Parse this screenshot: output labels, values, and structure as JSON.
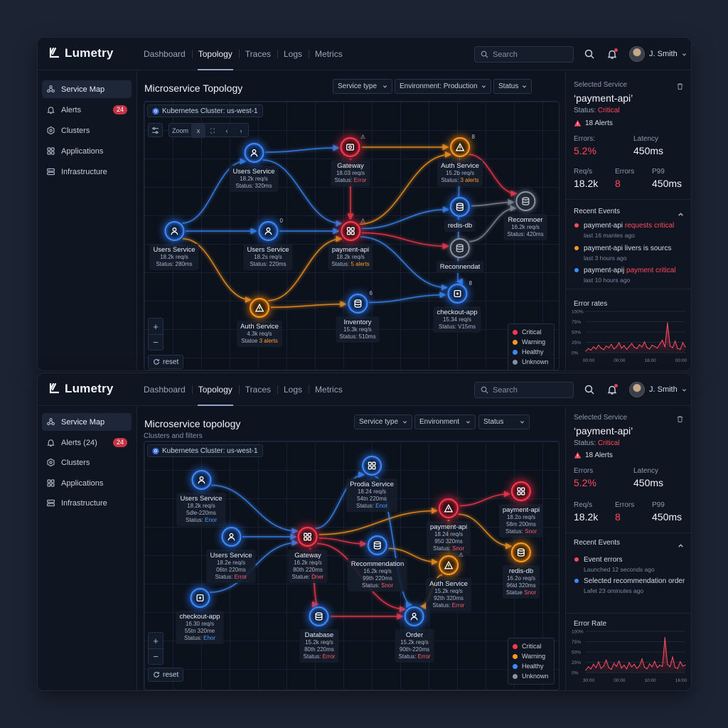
{
  "screens": [
    {
      "brand": "Lumetry",
      "nav": [
        "Dashboard",
        "Topology",
        "Traces",
        "Logs",
        "Metrics"
      ],
      "nav_active": 1,
      "search_placeholder": "Search",
      "user_name": "J. Smith",
      "sidebar": [
        {
          "label": "Service Map",
          "icon": "share-nodes-icon",
          "active": true
        },
        {
          "label": "Alerts",
          "icon": "bell-icon",
          "badge": "24"
        },
        {
          "label": "Clusters",
          "icon": "hexagon-icon"
        },
        {
          "label": "Applications",
          "icon": "grid-icon"
        },
        {
          "label": "Infrastructure",
          "icon": "server-icon"
        }
      ],
      "title": "Microservice Topology",
      "subtitle": "",
      "filters": [
        "Service type",
        "Environment: Production",
        "Status"
      ],
      "cluster": "Kubernetes Cluster: us-west-1",
      "toolbar": {
        "zoom_label": "Zoom",
        "buttons": [
          "x",
          "⛶",
          "‹",
          "›"
        ]
      },
      "reset_label": "reset",
      "nodes": [
        {
          "id": "u1",
          "title": "Users Service",
          "lines": [
            "18.2k req/s",
            "Status: 320ms"
          ],
          "status": "healthy",
          "icon": "user-icon"
        },
        {
          "id": "gw",
          "title": "Gateway",
          "lines": [
            "18.03 req/s",
            "Status: |Error"
          ],
          "status": "critical",
          "icon": "gateway-icon",
          "mark": "⚠"
        },
        {
          "id": "au",
          "title": "Auth Service",
          "lines": [
            "15.2b req/s",
            "Status: |3 alerts"
          ],
          "status": "warning",
          "icon": "alert-icon",
          "mark": "8"
        },
        {
          "id": "u0",
          "title": "Users Service",
          "lines": [
            "18.2k req/s",
            "Status: 280ms"
          ],
          "status": "healthy",
          "icon": "user-icon"
        },
        {
          "id": "u2",
          "title": "Users Service",
          "lines": [
            "18.2s req/s",
            "Status: 220ms"
          ],
          "status": "healthy",
          "icon": "user-icon",
          "mark": "0"
        },
        {
          "id": "pa",
          "title": "payment-api",
          "lines": [
            "18.2k req/s",
            "Status: |5 alerts"
          ],
          "status": "critical",
          "icon": "grid-icon",
          "mark": "⚠"
        },
        {
          "id": "rd",
          "title": "redis-db",
          "lines": [],
          "status": "healthy",
          "icon": "database-icon"
        },
        {
          "id": "rc",
          "title": "Recomnoer",
          "lines": [
            "16.2k req/s",
            "Status: 420ms"
          ],
          "status": "unknown",
          "icon": "database-icon"
        },
        {
          "id": "rn",
          "title": "Reconnendat",
          "lines": [],
          "status": "unknown",
          "icon": "database-icon"
        },
        {
          "id": "a2",
          "title": "Auth Service",
          "lines": [
            "4.3k req/s",
            "Statoe |3 alerts"
          ],
          "status": "warning",
          "icon": "alert-icon"
        },
        {
          "id": "iv",
          "title": "Inventory",
          "lines": [
            "15.3k req/s",
            "Status: 510ms"
          ],
          "status": "healthy",
          "icon": "database-icon",
          "mark": "6"
        },
        {
          "id": "co",
          "title": "checkout-app",
          "lines": [
            "15.34 req/s",
            "Status: V15ms"
          ],
          "status": "healthy",
          "icon": "box-icon",
          "mark": "8"
        }
      ],
      "legend": [
        "Critical",
        "Warning",
        "Healthy",
        "Unknown"
      ],
      "panel": {
        "label": "Selected Service",
        "service": "‘payment-api’",
        "status_label": "Status:",
        "status_value": "Critical",
        "alerts": "18 Alerts",
        "metrics": [
          {
            "label": "Errors:",
            "value": "5.2%",
            "red": true
          },
          {
            "label": "Latency",
            "value": "450ms"
          },
          {
            "label": "Req/s",
            "value": "18.2k"
          },
          {
            "label": "Errors",
            "value": "8",
            "red": true
          },
          {
            "label": "P99",
            "value": "450ms"
          }
        ],
        "events_title": "Recent Events",
        "events": [
          {
            "text": "payment-api ",
            "hl": "requests critical",
            "time": "last 16 mantes ago",
            "color": "#ff4a5c"
          },
          {
            "text": "payment-api livers is sourcs",
            "hl": "",
            "time": "last 3 hours ago",
            "color": "#ff9a2a"
          },
          {
            "text": "payment-apij ",
            "hl": "payment critical",
            "time": "last 10 hours ago",
            "color": "#3d8bff"
          }
        ],
        "chart_title": "Error rates"
      }
    },
    {
      "brand": "Lumetry",
      "nav": [
        "Dashboard",
        "Topology",
        "Traces",
        "Logs",
        "Metrics"
      ],
      "nav_active": 1,
      "search_placeholder": "Search",
      "user_name": "J. Smith",
      "sidebar": [
        {
          "label": "Service Map",
          "icon": "share-nodes-icon",
          "active": true
        },
        {
          "label": "Alerts (24)",
          "icon": "bell-icon",
          "badge": "24"
        },
        {
          "label": "Clusters",
          "icon": "hexagon-icon"
        },
        {
          "label": "Applications",
          "icon": "grid-icon"
        },
        {
          "label": "Infrastructure",
          "icon": "server-icon"
        }
      ],
      "title": "Microservice topology",
      "subtitle": "Clusters and filters",
      "filters": [
        "Service type",
        "Environment",
        "Status"
      ],
      "cluster": "Kubernetes Cluster: us-west-1",
      "reset_label": "reset",
      "nodes": [
        {
          "id": "ps",
          "title": "Prodia Service",
          "lines": [
            "18.24 req/s",
            "54tn 220ms",
            "Status: |Enor"
          ],
          "status": "healthy",
          "icon": "grid-icon"
        },
        {
          "id": "us",
          "title": "Users Service",
          "lines": [
            "18.2k req/s",
            "5dle-220ms",
            "Status: |Enor"
          ],
          "status": "healthy",
          "icon": "user-icon"
        },
        {
          "id": "pa",
          "title": "payment-api",
          "lines": [
            "18.2o req/s",
            "58m 200ms",
            "Status: |Snor"
          ],
          "status": "critical",
          "icon": "grid-icon"
        },
        {
          "id": "p2",
          "title": "payment-api",
          "lines": [
            "18.24 req/s",
            "950 320ms",
            "Status: |Snor"
          ],
          "status": "critical",
          "icon": "alert-icon"
        },
        {
          "id": "u2",
          "title": "Users Service",
          "lines": [
            "18.2e req/s",
            "06tn 220ms",
            "Status: |Error"
          ],
          "status": "healthy",
          "icon": "user-icon"
        },
        {
          "id": "gw",
          "title": "Gateway",
          "lines": [
            "16.2k req/s",
            "80th 220ms",
            "Statue: |Dner"
          ],
          "status": "critical",
          "icon": "grid-icon"
        },
        {
          "id": "rc",
          "title": "Recommendation",
          "lines": [
            "16.2k req/s",
            "99th 220ms",
            "Status: |Snor"
          ],
          "status": "healthy",
          "icon": "database-icon"
        },
        {
          "id": "rd",
          "title": "redis-db",
          "lines": [
            "16.2o req/s",
            "96ld 320ms",
            "Statue |Snor"
          ],
          "status": "warning",
          "icon": "database-icon"
        },
        {
          "id": "as",
          "title": "Auth Service",
          "lines": [
            "15.2k req/s",
            "92th 320ms",
            "Status: |Error"
          ],
          "status": "warning",
          "icon": "alert-icon",
          "mark": "⚠"
        },
        {
          "id": "ca",
          "title": "checkout-app",
          "lines": [
            "16.30 req/s",
            "55tn 320me",
            "Status: |Ehor"
          ],
          "status": "healthy",
          "icon": "box-icon"
        },
        {
          "id": "db",
          "title": "Database",
          "lines": [
            "15.2k req/s",
            "80th 220ms",
            "Status: |Error"
          ],
          "status": "healthy",
          "icon": "database-icon"
        },
        {
          "id": "or",
          "title": "Order",
          "lines": [
            "15.2k req/s",
            "90th-220ms",
            "Status: |Error"
          ],
          "status": "healthy",
          "icon": "user-icon"
        }
      ],
      "legend": [
        "Critical",
        "Warning",
        "Healthy",
        "Unknown"
      ],
      "panel": {
        "label": "Selected Service",
        "service": "‘payment-api’",
        "status_label": "Status:",
        "status_value": "Critical",
        "alerts": "18 Alerts",
        "metrics": [
          {
            "label": "Errors",
            "value": "5.2%",
            "red": true
          },
          {
            "label": "Latency",
            "value": "450ms"
          },
          {
            "label": "Req/s",
            "value": "18.2k"
          },
          {
            "label": "Errors",
            "value": "8",
            "red": true
          },
          {
            "label": "P99",
            "value": "450ms"
          }
        ],
        "events_title": "Recent Events",
        "events": [
          {
            "text": "Event errors",
            "hl": "",
            "time": "Launched 12 seconds ago",
            "color": "#ff4a5c"
          },
          {
            "text": "Selected recommendation order",
            "hl": "",
            "time": "Lafet 23 ominutes ago",
            "color": "#3d8bff"
          }
        ],
        "chart_title": "Error Rate"
      }
    }
  ],
  "chart_data": [
    {
      "type": "area",
      "title": "Error rates",
      "yticks": [
        "100%",
        "75%",
        "50%",
        "25%",
        "0%"
      ],
      "xticks": [
        "00:00",
        "00:00",
        "16:00",
        "00:00"
      ],
      "ylim": [
        0,
        100
      ],
      "values": [
        4,
        10,
        6,
        14,
        9,
        18,
        11,
        7,
        16,
        12,
        20,
        9,
        14,
        24,
        11,
        17,
        8,
        15,
        22,
        13,
        10,
        19,
        14,
        26,
        12,
        9,
        18,
        15,
        11,
        21,
        30,
        14,
        72,
        16,
        12,
        28,
        10,
        8,
        24,
        14
      ]
    },
    {
      "type": "area",
      "title": "Error Rate",
      "yticks": [
        "100%",
        "75%",
        "50%",
        "25%",
        "0%"
      ],
      "xticks": [
        "30:00",
        "00:00",
        "10:00",
        "16:00"
      ],
      "ylim": [
        0,
        100
      ],
      "values": [
        6,
        14,
        9,
        20,
        12,
        26,
        10,
        16,
        30,
        12,
        8,
        22,
        15,
        28,
        11,
        18,
        9,
        24,
        14,
        20,
        10,
        16,
        33,
        13,
        9,
        21,
        14,
        27,
        12,
        18,
        15,
        85,
        20,
        14,
        38,
        12,
        10,
        26,
        16,
        18
      ]
    }
  ],
  "colors": {
    "critical": "#ff3a4e",
    "warning": "#ff9a1f",
    "healthy": "#3d8bff",
    "unknown": "#8a93a3"
  }
}
